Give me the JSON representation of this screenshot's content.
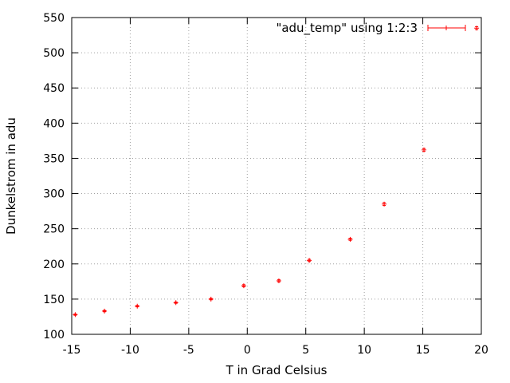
{
  "chart_data": {
    "type": "scatter",
    "title": "",
    "xlabel": "T in Grad Celsius",
    "ylabel": "Dunkelstrom in adu",
    "xlim": [
      -15,
      20
    ],
    "ylim": [
      100,
      550
    ],
    "x_ticks": [
      -15,
      -10,
      -5,
      0,
      5,
      10,
      15,
      20
    ],
    "y_ticks": [
      100,
      150,
      200,
      250,
      300,
      350,
      400,
      450,
      500,
      550
    ],
    "x_tick_labels": [
      "-15",
      "-10",
      "-5",
      "0",
      "5",
      "10",
      "15",
      "20"
    ],
    "y_tick_labels": [
      "100",
      "150",
      "200",
      "250",
      "300",
      "350",
      "400",
      "450",
      "500",
      "550"
    ],
    "grid": true,
    "legend_position": "top-right",
    "series": [
      {
        "name": "\"adu_temp\" using 1:2:3",
        "color": "#ff0000",
        "marker": "plus with error bars",
        "x": [
          -14.7,
          -12.2,
          -9.4,
          -6.1,
          -3.1,
          -0.3,
          2.7,
          5.3,
          8.8,
          11.7,
          15.1,
          19.6
        ],
        "y": [
          128,
          133,
          140,
          145,
          150,
          169,
          176,
          205,
          235,
          285,
          362,
          535
        ],
        "yerr": [
          1,
          1,
          1,
          1,
          1,
          1.5,
          1.5,
          1.5,
          1.5,
          2,
          2,
          2
        ]
      }
    ]
  }
}
